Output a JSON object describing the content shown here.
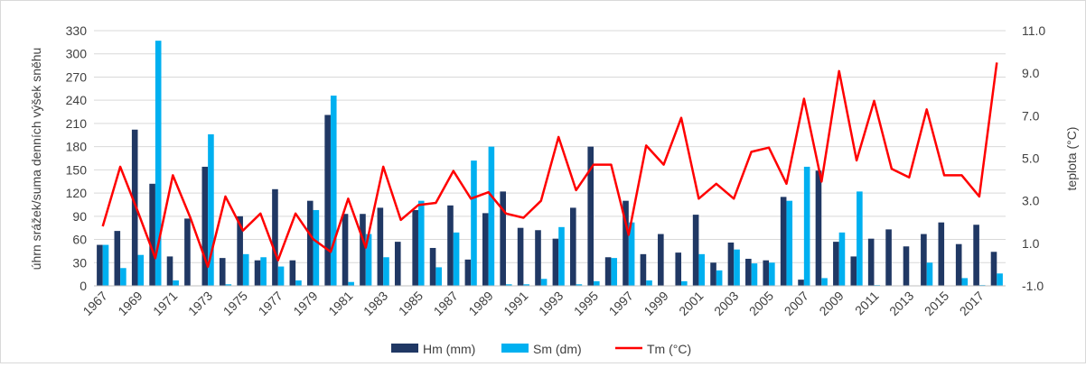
{
  "chart_data": {
    "type": "bar",
    "title": "",
    "xlabel": "",
    "ylabel": "úhrn srážek/suma denních výšek sněhu",
    "ylabel_right": "teplota (°C)",
    "ylim": [
      0,
      330
    ],
    "yticks": [
      0,
      30,
      60,
      90,
      120,
      150,
      180,
      210,
      240,
      270,
      300,
      330
    ],
    "ylim_right": [
      -1.0,
      11.0
    ],
    "yticks_right": [
      "-1.0",
      "1.0",
      "3.0",
      "5.0",
      "7.0",
      "9.0",
      "11.0"
    ],
    "grid": true,
    "legend_position": "bottom",
    "colors": {
      "hm": "#203864",
      "sm": "#00b0f0",
      "tm": "#ff0000",
      "grid": "#d9d9d9",
      "axis_text": "#404040"
    },
    "categories": [
      1967,
      1968,
      1969,
      1970,
      1971,
      1972,
      1973,
      1974,
      1975,
      1976,
      1977,
      1978,
      1979,
      1980,
      1981,
      1982,
      1983,
      1984,
      1985,
      1986,
      1987,
      1988,
      1989,
      1990,
      1991,
      1992,
      1993,
      1994,
      1995,
      1996,
      1997,
      1998,
      1999,
      2000,
      2001,
      2002,
      2003,
      2004,
      2005,
      2006,
      2007,
      2008,
      2009,
      2010,
      2011,
      2012,
      2013,
      2014,
      2015,
      2016,
      2017,
      2018
    ],
    "xtick_labels": [
      "1967",
      "1969",
      "1971",
      "1973",
      "1975",
      "1977",
      "1979",
      "1981",
      "1983",
      "1985",
      "1987",
      "1989",
      "1991",
      "1993",
      "1995",
      "1997",
      "1999",
      "2001",
      "2003",
      "2005",
      "2007",
      "2009",
      "2011",
      "2013",
      "2015",
      "2017"
    ],
    "series": [
      {
        "name": "Hm (mm)",
        "type": "bar",
        "axis": "left",
        "values": [
          53,
          71,
          202,
          132,
          38,
          87,
          154,
          36,
          90,
          33,
          125,
          33,
          110,
          221,
          93,
          93,
          101,
          57,
          98,
          49,
          104,
          34,
          94,
          122,
          75,
          72,
          61,
          101,
          180,
          37,
          110,
          41,
          67,
          43,
          92,
          30,
          56,
          35,
          33,
          115,
          8,
          149,
          57,
          38,
          61,
          73,
          51,
          67,
          82,
          54,
          79,
          44
        ]
      },
      {
        "name": "Sm (dm)",
        "type": "bar",
        "axis": "left",
        "values": [
          53,
          23,
          40,
          317,
          7,
          0,
          196,
          2,
          41,
          37,
          25,
          7,
          98,
          246,
          5,
          67,
          37,
          0,
          110,
          24,
          69,
          162,
          180,
          2,
          2,
          9,
          76,
          2,
          6,
          36,
          82,
          7,
          0,
          6,
          41,
          20,
          47,
          29,
          30,
          110,
          154,
          10,
          69,
          122,
          1,
          0,
          0,
          30,
          0,
          10,
          1,
          16
        ]
      },
      {
        "name": "Tm (°C)",
        "type": "line",
        "axis": "right",
        "values": [
          1.8,
          4.6,
          2.5,
          0.3,
          4.2,
          2.2,
          -0.1,
          3.2,
          1.6,
          2.4,
          0.2,
          2.4,
          1.2,
          0.6,
          3.1,
          0.8,
          4.6,
          2.1,
          2.8,
          2.9,
          4.4,
          3.1,
          3.4,
          2.4,
          2.2,
          3.0,
          6.0,
          3.5,
          4.7,
          4.7,
          1.4,
          5.6,
          4.7,
          6.9,
          3.1,
          3.8,
          3.1,
          5.3,
          5.5,
          3.8,
          7.8,
          3.9,
          9.1,
          4.9,
          7.7,
          4.5,
          4.1,
          7.3,
          4.2,
          4.2,
          3.2,
          9.5
        ]
      }
    ]
  }
}
